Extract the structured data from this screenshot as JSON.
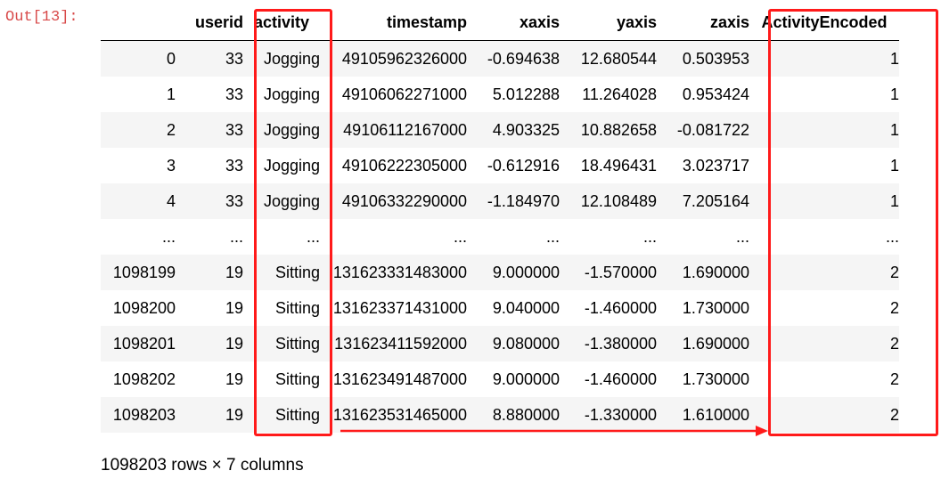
{
  "cell": {
    "prompt": "Out[13]:"
  },
  "table": {
    "columns": [
      "",
      "userid",
      "activity",
      "timestamp",
      "xaxis",
      "yaxis",
      "zaxis",
      "ActivityEncoded"
    ],
    "rows": [
      [
        "0",
        "33",
        "Jogging",
        "49105962326000",
        "-0.694638",
        "12.680544",
        "0.503953",
        "1"
      ],
      [
        "1",
        "33",
        "Jogging",
        "49106062271000",
        "5.012288",
        "11.264028",
        "0.953424",
        "1"
      ],
      [
        "2",
        "33",
        "Jogging",
        "49106112167000",
        "4.903325",
        "10.882658",
        "-0.081722",
        "1"
      ],
      [
        "3",
        "33",
        "Jogging",
        "49106222305000",
        "-0.612916",
        "18.496431",
        "3.023717",
        "1"
      ],
      [
        "4",
        "33",
        "Jogging",
        "49106332290000",
        "-1.184970",
        "12.108489",
        "7.205164",
        "1"
      ],
      [
        "...",
        "...",
        "...",
        "...",
        "...",
        "...",
        "...",
        "..."
      ],
      [
        "1098199",
        "19",
        "Sitting",
        "131623331483000",
        "9.000000",
        "-1.570000",
        "1.690000",
        "2"
      ],
      [
        "1098200",
        "19",
        "Sitting",
        "131623371431000",
        "9.040000",
        "-1.460000",
        "1.730000",
        "2"
      ],
      [
        "1098201",
        "19",
        "Sitting",
        "131623411592000",
        "9.080000",
        "-1.380000",
        "1.690000",
        "2"
      ],
      [
        "1098202",
        "19",
        "Sitting",
        "131623491487000",
        "9.000000",
        "-1.460000",
        "1.730000",
        "2"
      ],
      [
        "1098203",
        "19",
        "Sitting",
        "131623531465000",
        "8.880000",
        "-1.330000",
        "1.610000",
        "2"
      ]
    ]
  },
  "caption": "1098203 rows × 7 columns",
  "annotation": {
    "color": "#ff1a1a"
  }
}
